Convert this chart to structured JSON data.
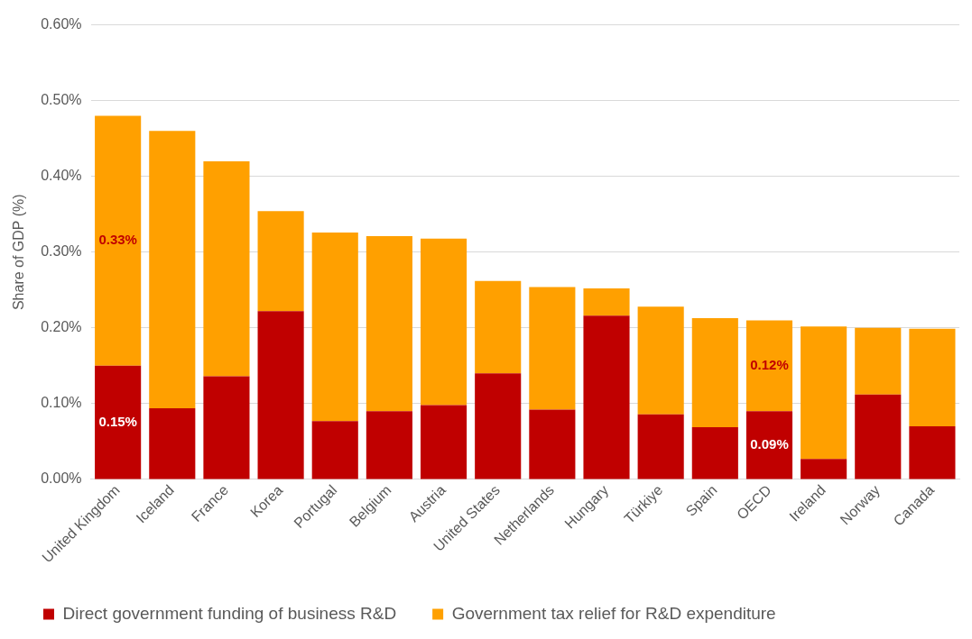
{
  "chart_data": {
    "type": "bar",
    "stacked": true,
    "ylabel": "Share of GDP (%)",
    "categories": [
      "United Kingdom",
      "Iceland",
      "France",
      "Korea",
      "Portugal",
      "Belgium",
      "Austria",
      "United States",
      "Netherlands",
      "Hungary",
      "Türkiye",
      "Spain",
      "OECD",
      "Ireland",
      "Norway",
      "Canada"
    ],
    "series": [
      {
        "name": "Direct government funding of business R&D",
        "color": "#c00000",
        "values": [
          0.15,
          0.094,
          0.136,
          0.222,
          0.077,
          0.09,
          0.098,
          0.14,
          0.092,
          0.216,
          0.086,
          0.069,
          0.09,
          0.027,
          0.112,
          0.07
        ],
        "value_labels": [
          "0.15%",
          null,
          null,
          null,
          null,
          null,
          null,
          null,
          null,
          null,
          null,
          null,
          "0.09%",
          null,
          null,
          null
        ]
      },
      {
        "name": "Government tax relief for R&D expenditure",
        "color": "#ffa000",
        "values": [
          0.33,
          0.366,
          0.284,
          0.132,
          0.249,
          0.231,
          0.22,
          0.122,
          0.162,
          0.036,
          0.142,
          0.144,
          0.12,
          0.175,
          0.088,
          0.129
        ],
        "value_labels": [
          "0.33%",
          null,
          null,
          null,
          null,
          null,
          null,
          null,
          null,
          null,
          null,
          null,
          "0.12%",
          null,
          null,
          null
        ]
      }
    ],
    "ylim": [
      0,
      0.6
    ],
    "yticks": [
      {
        "value": 0,
        "label": "0.00%"
      },
      {
        "value": 0.1,
        "label": "0.10%"
      },
      {
        "value": 0.2,
        "label": "0.20%"
      },
      {
        "value": 0.3,
        "label": "0.30%"
      },
      {
        "value": 0.4,
        "label": "0.40%"
      },
      {
        "value": 0.5,
        "label": "0.50%"
      },
      {
        "value": 0.6,
        "label": "0.60%"
      }
    ],
    "grid": "y",
    "legend": "bottom"
  }
}
